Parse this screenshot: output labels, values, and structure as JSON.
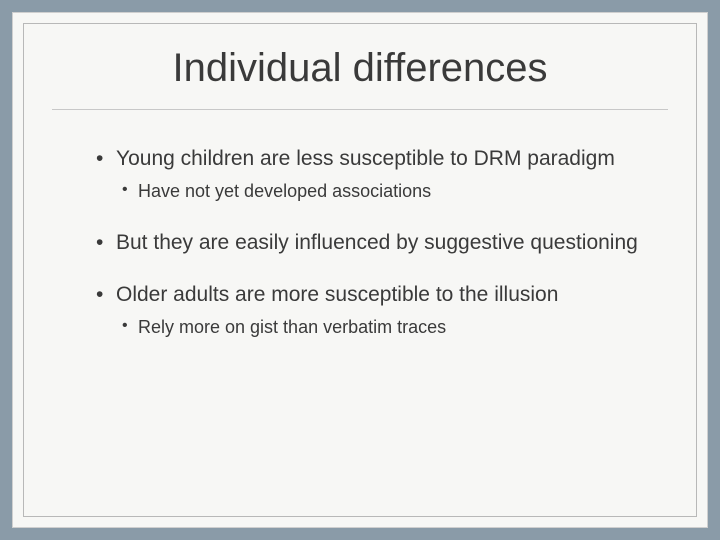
{
  "slide": {
    "title": "Individual differences",
    "title_fontsize": 40,
    "title_color": "#3a3a3a",
    "background_color": "#f7f7f5",
    "outer_background": "#8a9ba8",
    "border_color": "#b8b8b8",
    "divider_color": "#c8c8c8",
    "body_fontsize_outer": 21,
    "body_fontsize_inner": 18,
    "text_color": "#3a3a3a",
    "bullets": [
      {
        "text": "Young children are less susceptible to DRM paradigm",
        "children": [
          {
            "text": "Have not yet developed associations"
          }
        ]
      },
      {
        "text": "But they are easily influenced by suggestive questioning",
        "children": []
      },
      {
        "text": "Older adults are more susceptible to the illusion",
        "children": [
          {
            "text": "Rely more on gist than verbatim traces"
          }
        ]
      }
    ]
  }
}
